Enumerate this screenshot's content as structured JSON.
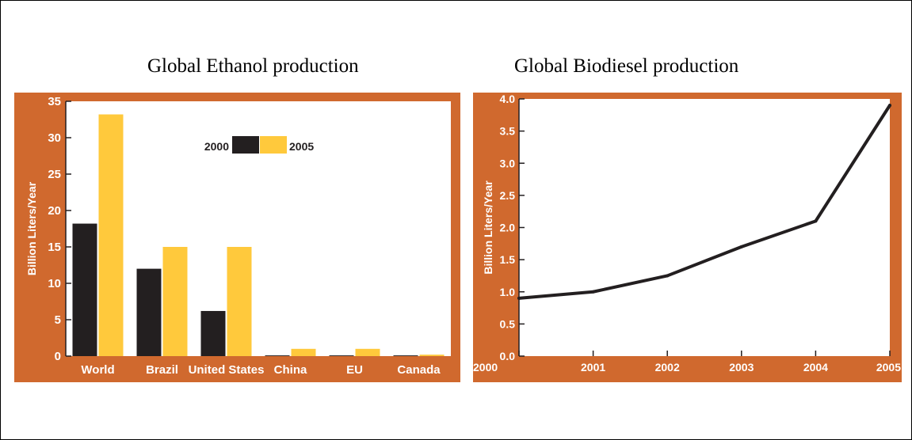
{
  "titles": {
    "left": "Global Ethanol production",
    "right": "Global Biodiesel production"
  },
  "colors": {
    "frame": "#d0692e",
    "plot_bg": "#ffffff",
    "bar_2000": "#231f20",
    "bar_2005": "#ffc93c",
    "line": "#231f20",
    "axis_text": "#ffffff"
  },
  "chart_data": [
    {
      "type": "bar",
      "title": "",
      "xlabel": "",
      "ylabel": "Billion Liters/Year",
      "ylim": [
        0,
        35
      ],
      "yticks": [
        0,
        5,
        10,
        15,
        20,
        25,
        30,
        35
      ],
      "categories": [
        "World",
        "Brazil",
        "United States",
        "China",
        "EU",
        "Canada"
      ],
      "series": [
        {
          "name": "2000",
          "values": [
            18.2,
            12.0,
            6.2,
            0.1,
            0.1,
            0.1
          ]
        },
        {
          "name": "2005",
          "values": [
            33.2,
            15.0,
            15.0,
            1.0,
            1.0,
            0.2
          ]
        }
      ],
      "legend": "top-center",
      "grid": false
    },
    {
      "type": "line",
      "title": "",
      "xlabel": "",
      "ylabel": "Billion Liters/Year",
      "ylim": [
        0,
        4.0
      ],
      "yticks": [
        "0.0",
        "0.5",
        "1.0",
        "1.5",
        "2.0",
        "2.5",
        "3.0",
        "3.5",
        "4.0"
      ],
      "x": [
        "2000",
        "2001",
        "2002",
        "2003",
        "2004",
        "2005"
      ],
      "series": [
        {
          "values": [
            0.9,
            1.0,
            1.25,
            1.7,
            2.1,
            3.9
          ]
        }
      ],
      "grid": false
    }
  ]
}
